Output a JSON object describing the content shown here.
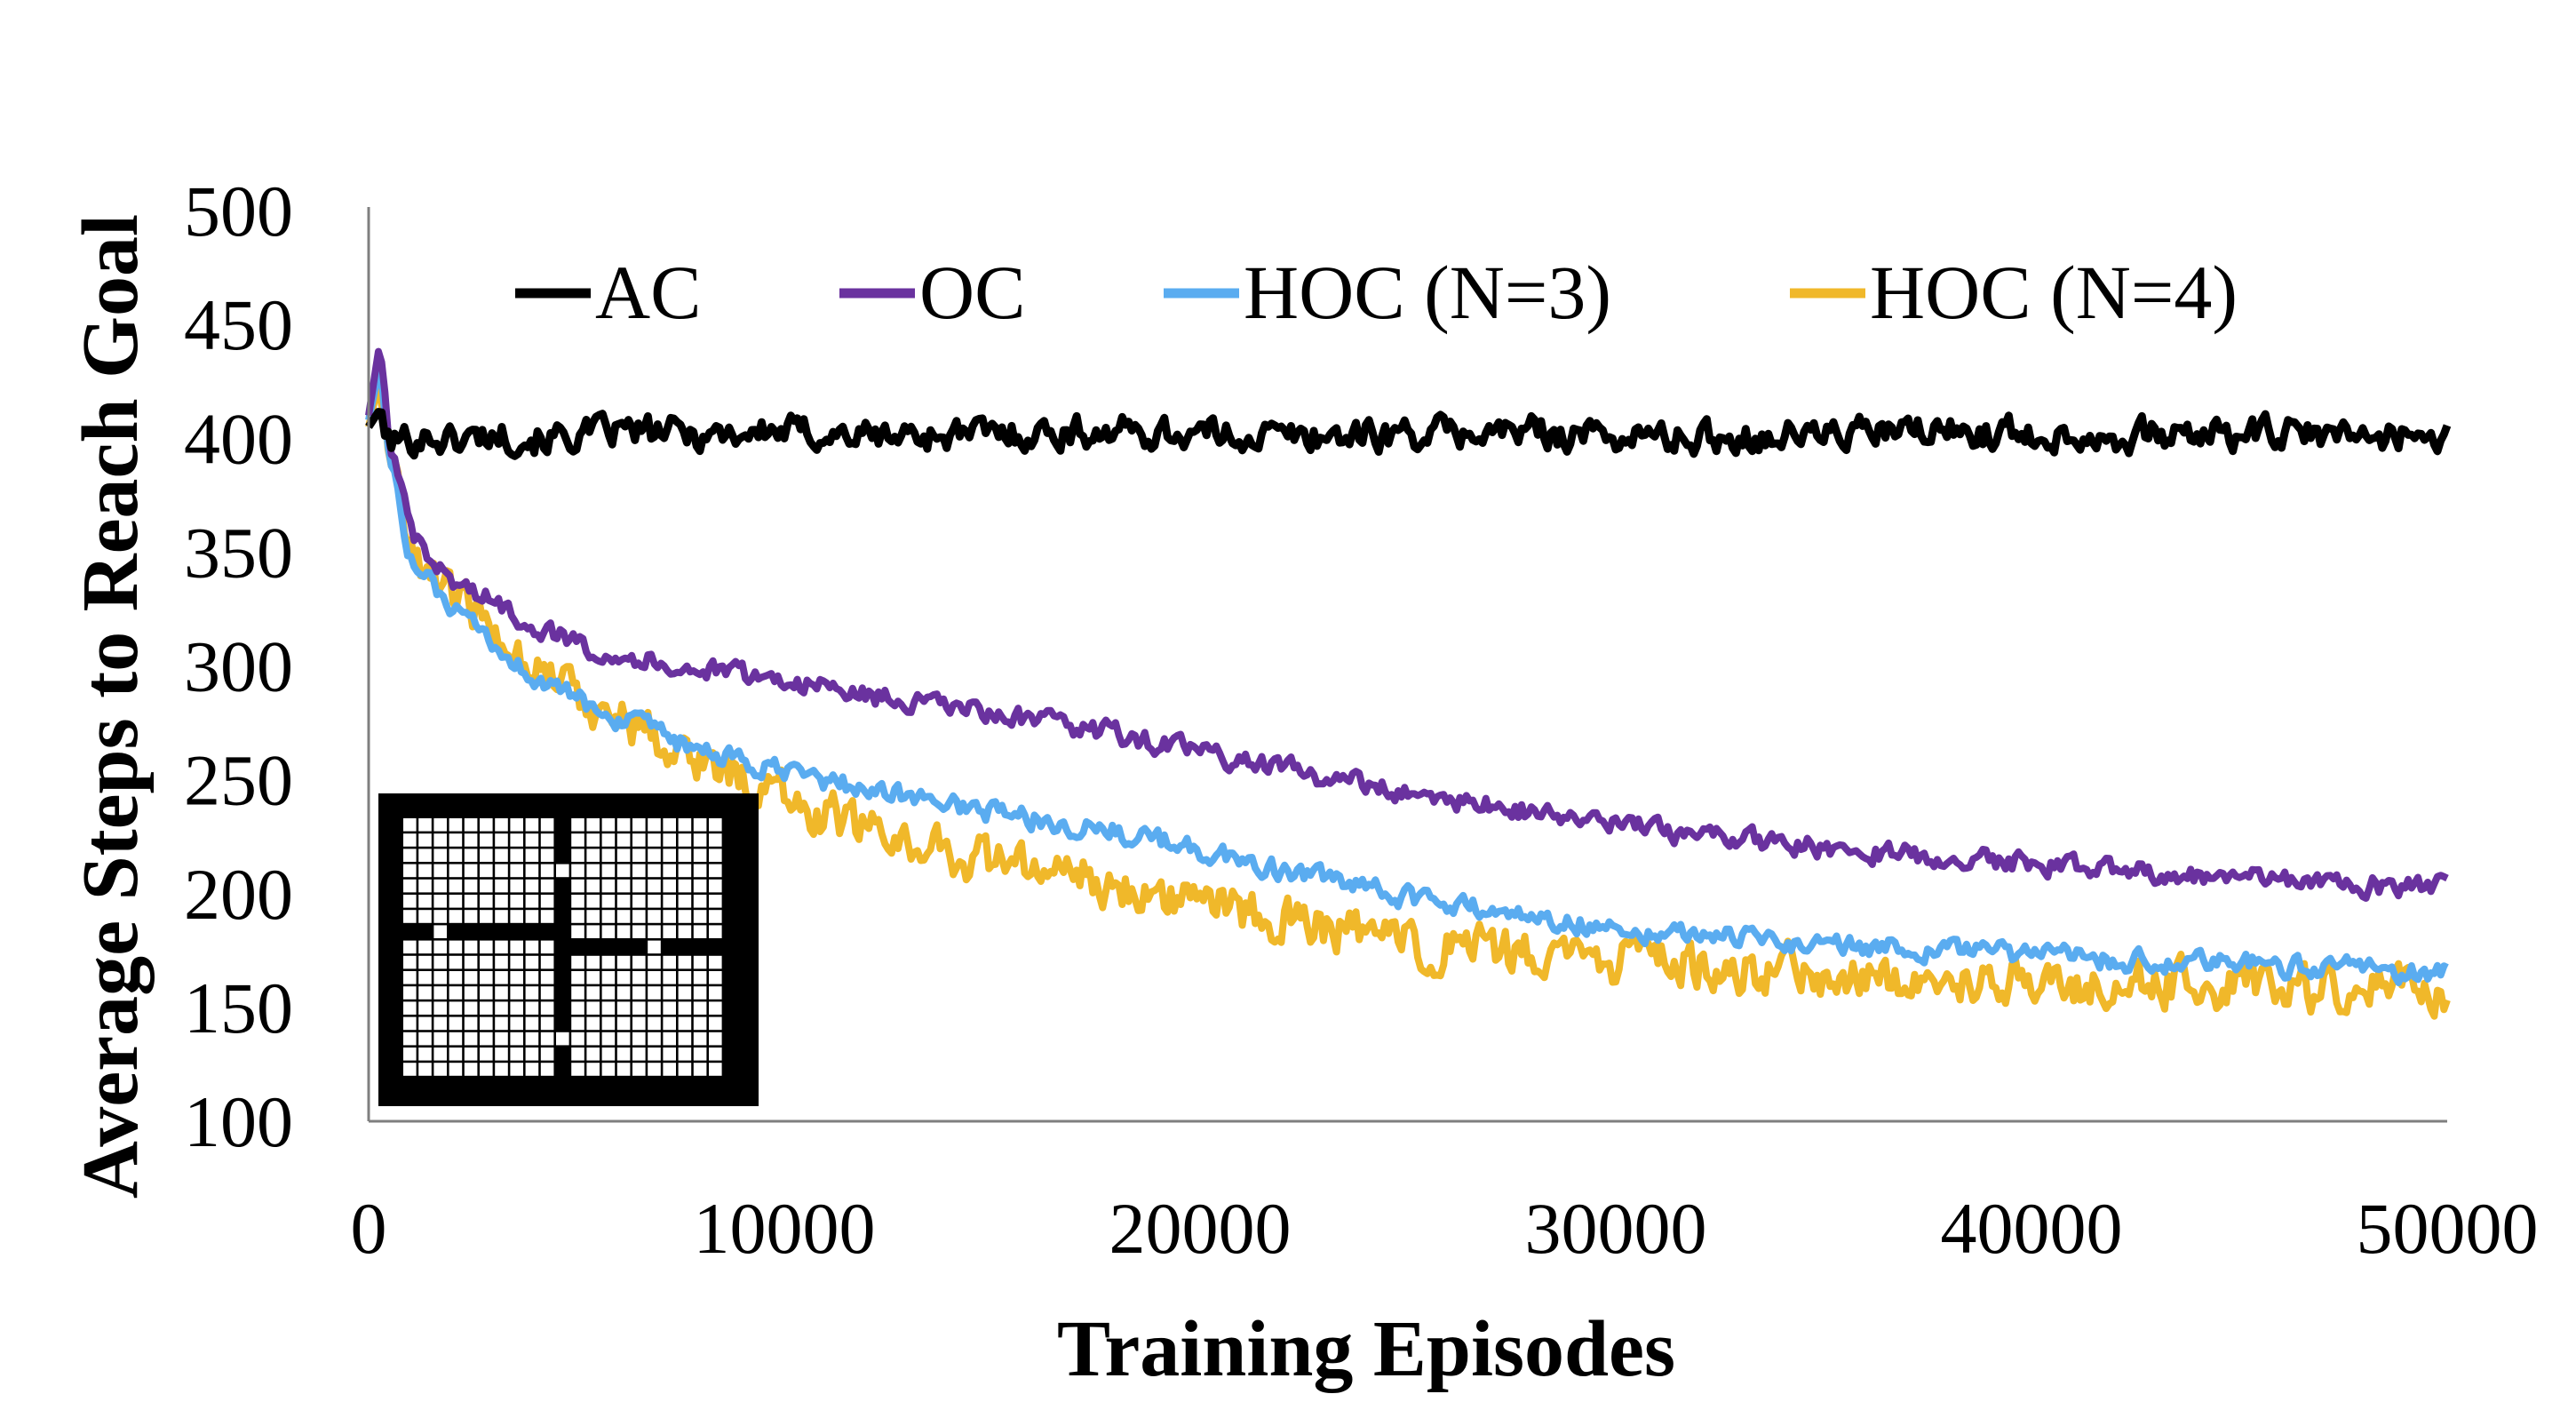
{
  "chart_data": {
    "type": "line",
    "title": "",
    "xlabel": "Training Episodes",
    "ylabel": "Average Steps to Reach Goal",
    "xlim": [
      0,
      50000
    ],
    "ylim": [
      100,
      500
    ],
    "xticks": [
      "0",
      "10000",
      "20000",
      "30000",
      "40000",
      "50000"
    ],
    "yticks": [
      "100",
      "150",
      "200",
      "250",
      "300",
      "350",
      "400",
      "450",
      "500"
    ],
    "legend_position": "top",
    "grid": false,
    "x": [
      0,
      250,
      500,
      1000,
      1500,
      2000,
      3000,
      4000,
      5000,
      6000,
      8000,
      10000,
      12000,
      15000,
      18000,
      20000,
      22000,
      25000,
      28000,
      30000,
      32000,
      35000,
      38000,
      40000,
      42000,
      45000,
      48000,
      50000
    ],
    "series": [
      {
        "name": "AC",
        "color": "#000000",
        "noise": 6,
        "values": [
          405,
          412,
          398,
          400,
          401,
          399,
          402,
          400,
          401,
          403,
          402,
          403,
          401,
          402,
          403,
          402,
          401,
          402,
          403,
          401,
          400,
          402,
          403,
          402,
          401,
          402,
          401,
          402
        ]
      },
      {
        "name": "OC",
        "color": "#6a329f",
        "noise": 4,
        "values": [
          410,
          440,
          400,
          358,
          345,
          338,
          328,
          318,
          310,
          305,
          298,
          294,
          287,
          279,
          270,
          262,
          255,
          244,
          236,
          230,
          226,
          220,
          216,
          213,
          211,
          207,
          204,
          203
        ]
      },
      {
        "name": "HOC (N=3)",
        "color": "#5aacf0",
        "noise": 4,
        "values": [
          408,
          430,
          395,
          348,
          335,
          325,
          308,
          295,
          285,
          277,
          262,
          253,
          246,
          236,
          227,
          219,
          210,
          198,
          190,
          185,
          182,
          178,
          175,
          173,
          171,
          169,
          167,
          165
        ]
      },
      {
        "name": "HOC (N=4)",
        "color": "#f0b82a",
        "noise": 9,
        "values": [
          405,
          425,
          395,
          352,
          340,
          330,
          315,
          302,
          288,
          278,
          258,
          242,
          228,
          214,
          205,
          197,
          188,
          178,
          172,
          170,
          168,
          165,
          163,
          162,
          161,
          160,
          158,
          155
        ]
      }
    ]
  }
}
